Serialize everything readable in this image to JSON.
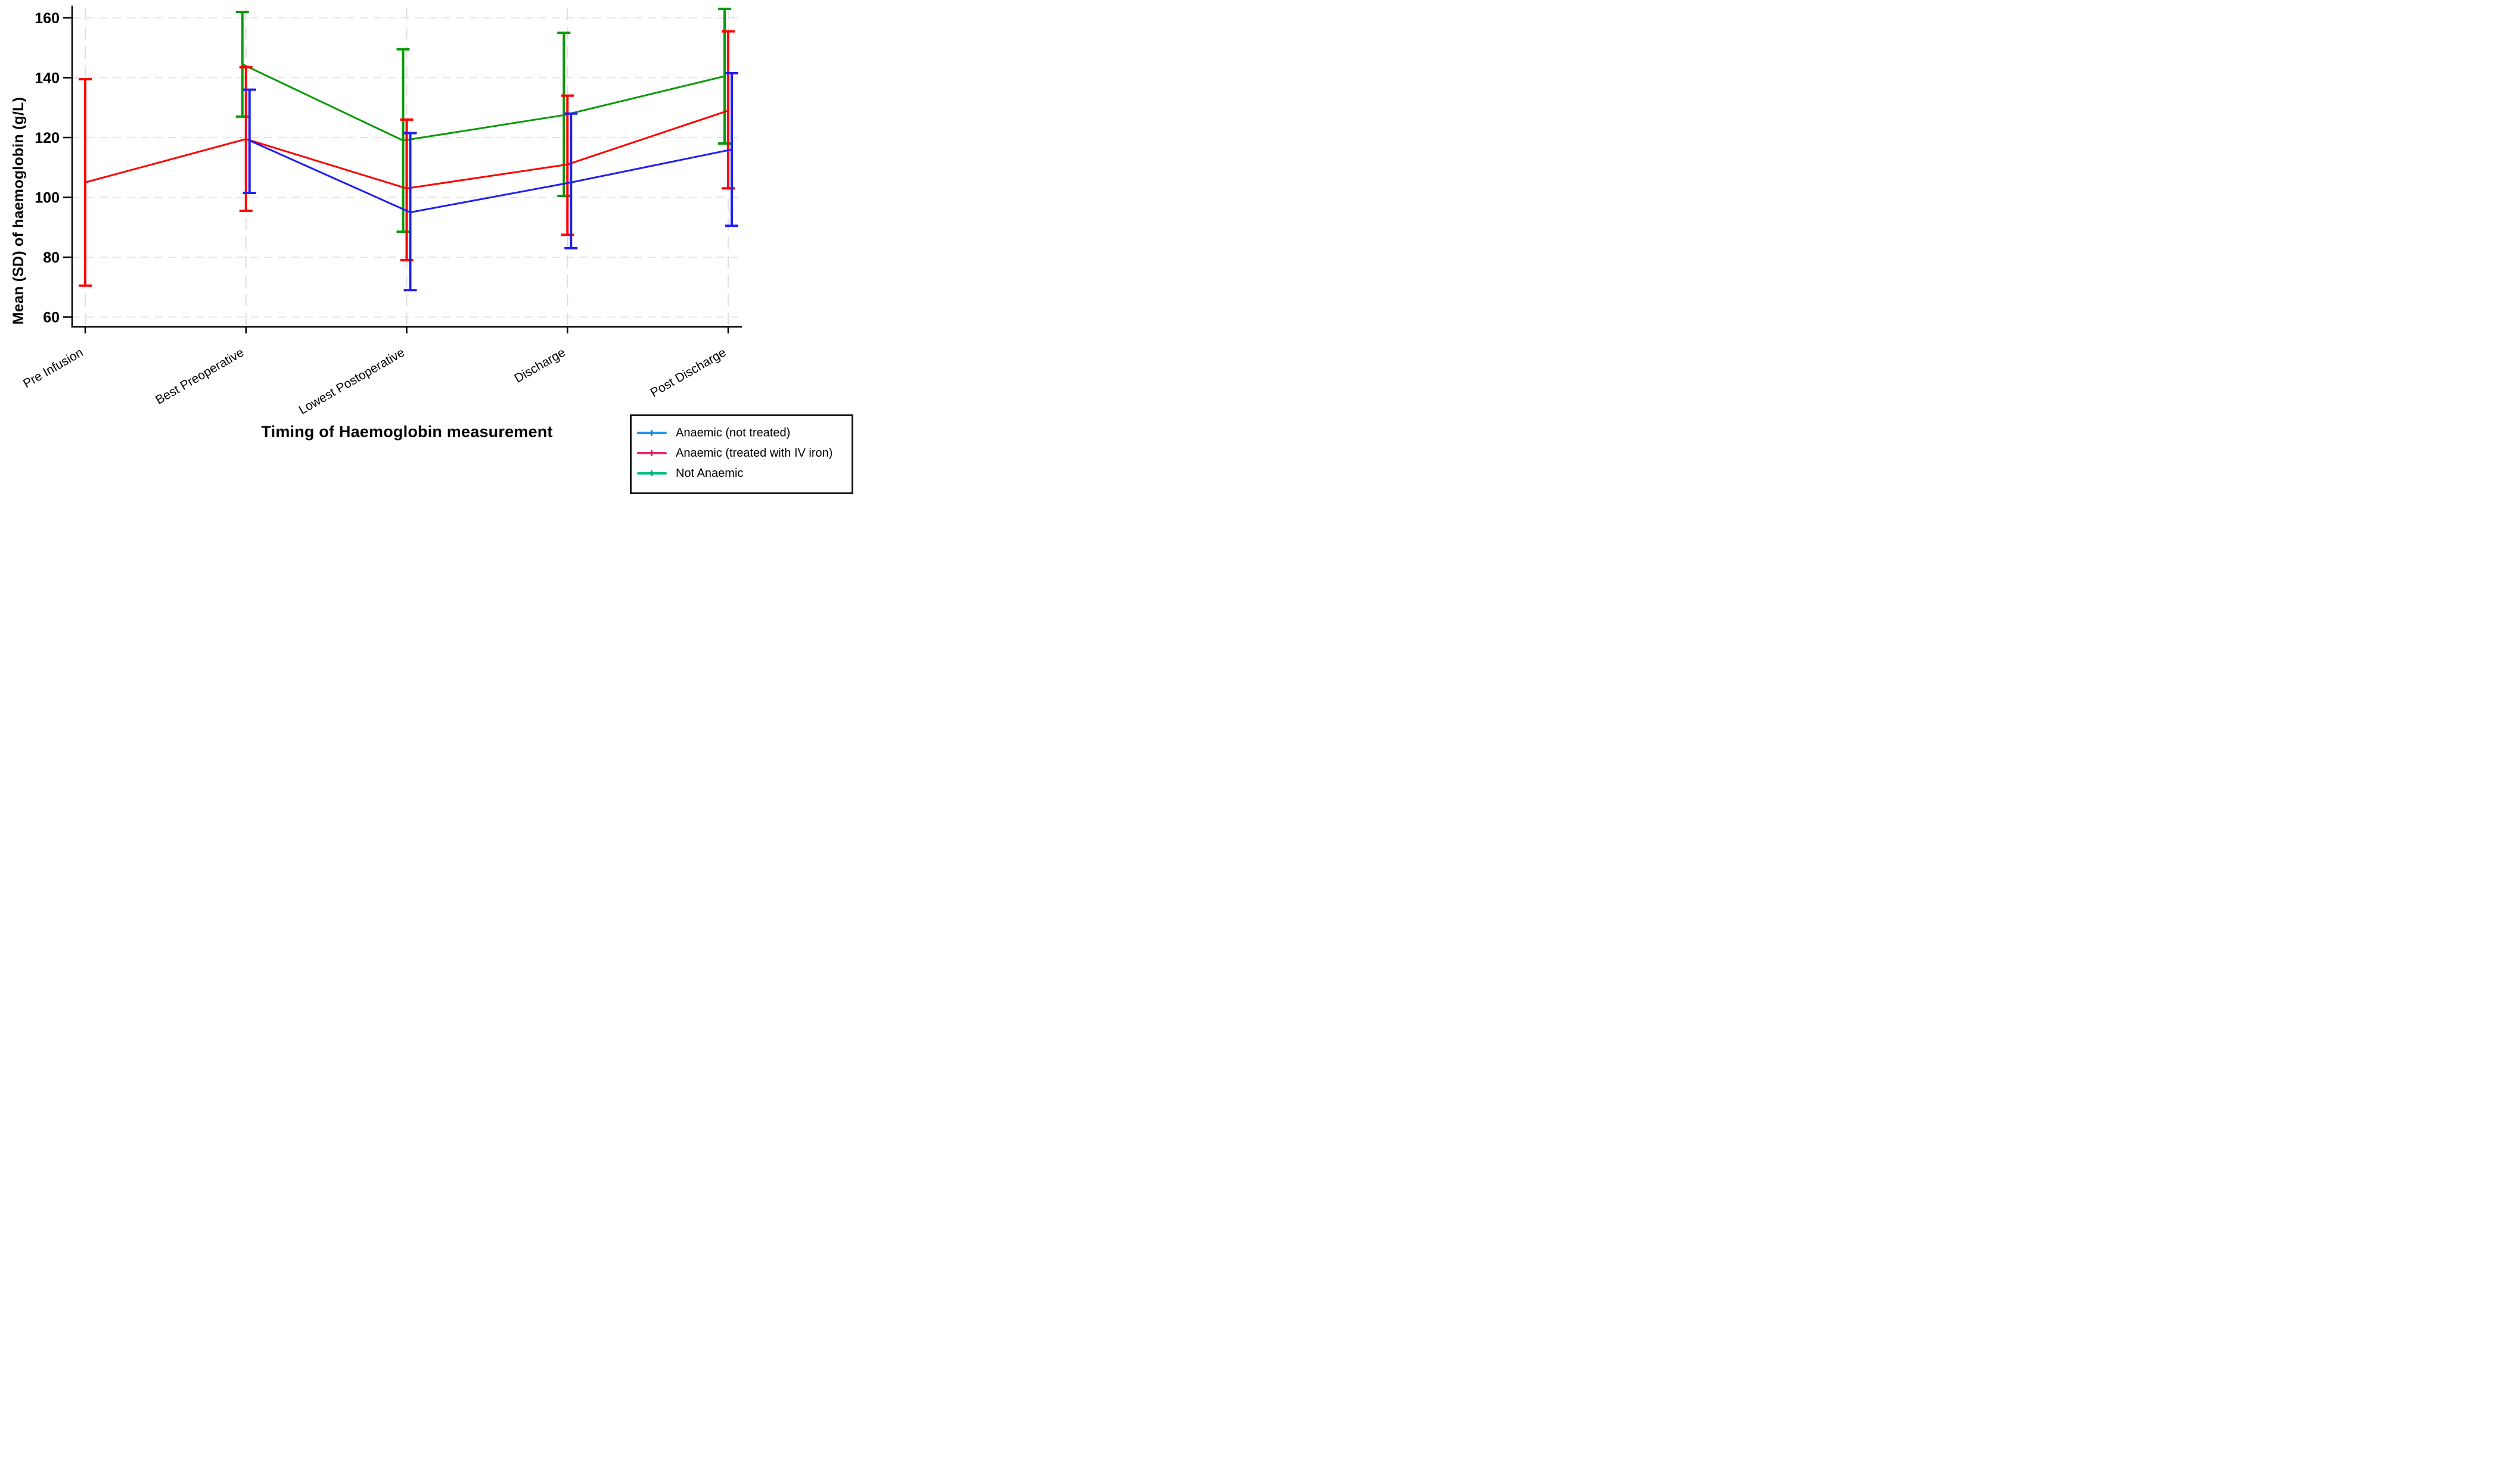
{
  "page": {
    "background": "#ffffff"
  },
  "axes": {
    "y_title": "Mean (SD) of haemoglobin (g/L)",
    "x_title": "Timing of Haemoglobin measurement"
  },
  "legend": {
    "position": "bottom-right",
    "entries": [
      {
        "label": "Anaemic (not treated)",
        "color": "#2196F3"
      },
      {
        "label": "Anaemic (treated with IV iron)",
        "color": "#F0246A"
      },
      {
        "label": "Not Anaemic",
        "color": "#00BD84"
      }
    ]
  },
  "chart_data": {
    "type": "line",
    "title": "",
    "xlabel": "Timing of Haemoglobin measurement",
    "ylabel": "Mean (SD) of haemoglobin (g/L)",
    "categories": [
      "Pre Infusion",
      "Best Preoperative",
      "Lowest Postoperative",
      "Discharge",
      "Post Discharge"
    ],
    "yticks": [
      60,
      80,
      100,
      120,
      140,
      160
    ],
    "ylim": [
      56.5,
      164.5
    ],
    "grid": true,
    "error_bars": "mean ± SD",
    "legend_position": "bottom-right",
    "series": [
      {
        "name": "Anaemic (not treated)",
        "line_color": "#2020F0",
        "legend_color": "#2196F3",
        "means": [
          null,
          119,
          95,
          105,
          116
        ],
        "lower": [
          null,
          101.5,
          69,
          83,
          90.5
        ],
        "upper": [
          null,
          136,
          121.5,
          128,
          141.5
        ]
      },
      {
        "name": "Anaemic (treated with IV iron)",
        "line_color": "#FE0000",
        "legend_color": "#F0246A",
        "means": [
          105,
          119.5,
          103,
          111,
          129
        ],
        "lower": [
          70.5,
          95.5,
          79,
          87.5,
          103
        ],
        "upper": [
          139.5,
          143.5,
          126,
          134,
          155.5
        ]
      },
      {
        "name": "Not Anaemic",
        "line_color": "#0A9A0A",
        "legend_color": "#00BD84",
        "means": [
          null,
          144.5,
          119,
          127.5,
          140.5
        ],
        "lower": [
          null,
          127,
          88.5,
          100.5,
          118
        ],
        "upper": [
          null,
          162,
          149.5,
          155,
          163
        ]
      }
    ]
  }
}
